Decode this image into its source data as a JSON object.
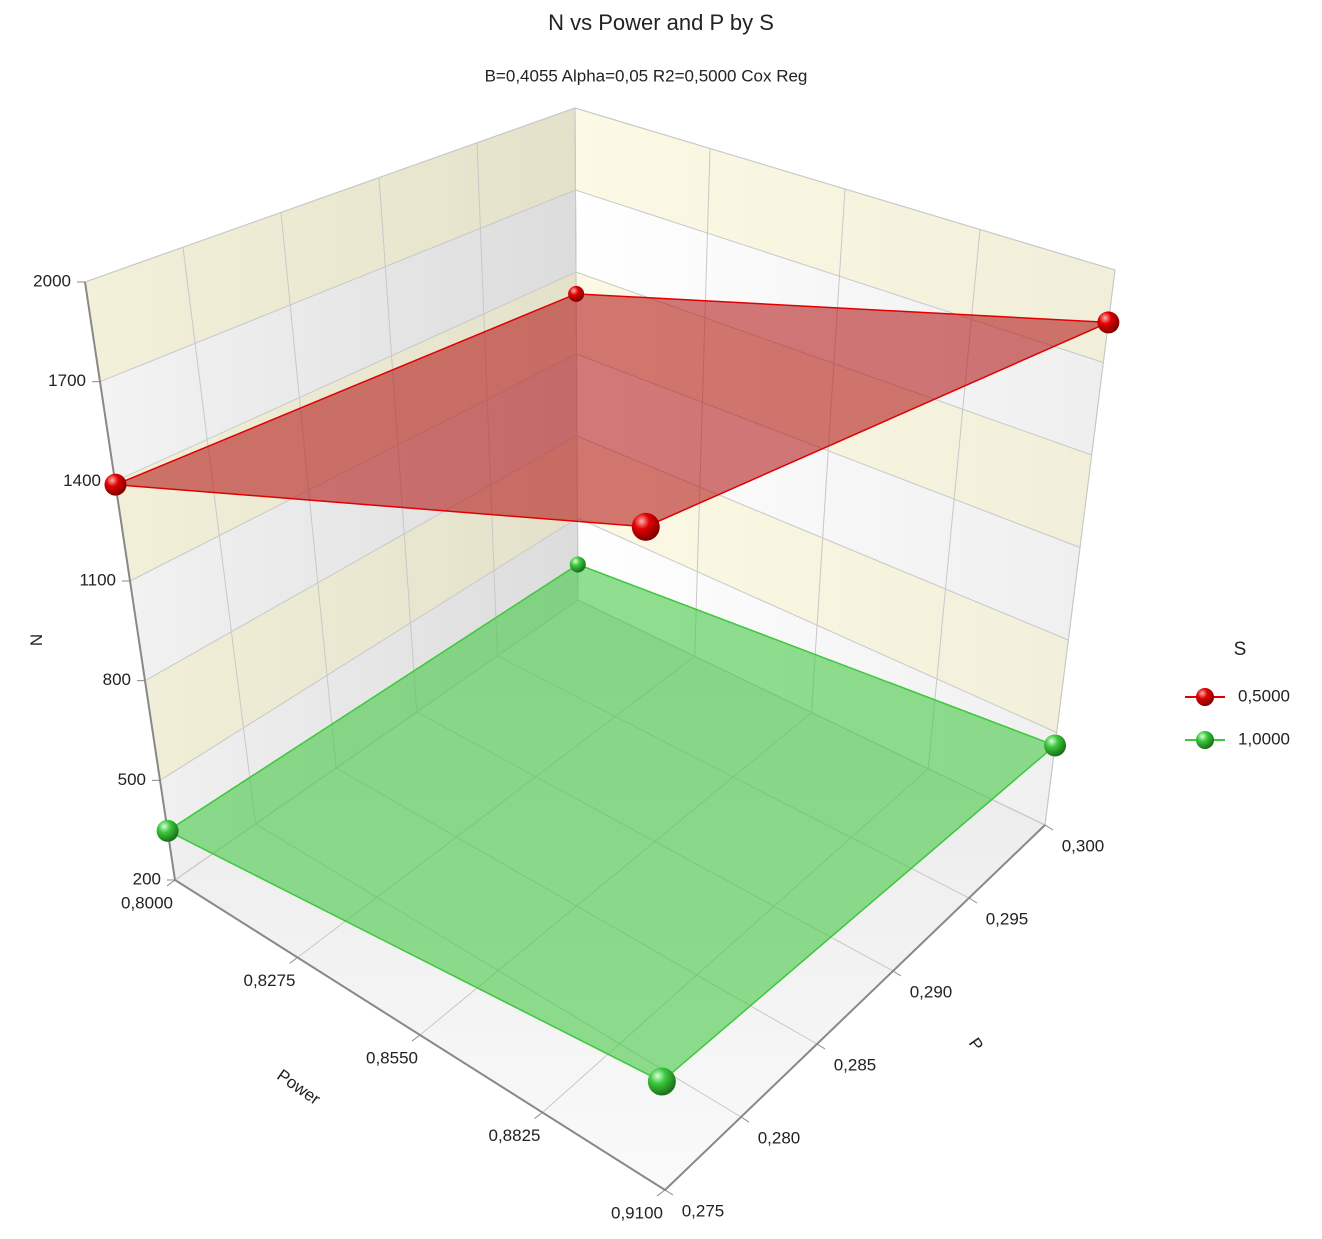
{
  "chart_data": {
    "type": "surface3d",
    "title": "N vs Power and P by S",
    "subtitle": "B=0,4055 Alpha=0,05 R2=0,5000 Cox Reg",
    "x_label": "Power",
    "y_label": "P",
    "z_label": "N",
    "xlim": [
      0.8,
      0.91
    ],
    "xticks": [
      {
        "value": 0.8,
        "label": "0,8000"
      },
      {
        "value": 0.8275,
        "label": "0,8275"
      },
      {
        "value": 0.855,
        "label": "0,8550"
      },
      {
        "value": 0.8825,
        "label": "0,8825"
      },
      {
        "value": 0.91,
        "label": "0,9100"
      }
    ],
    "ylim": [
      0.275,
      0.3
    ],
    "yticks": [
      {
        "value": 0.275,
        "label": "0,275"
      },
      {
        "value": 0.28,
        "label": "0,280"
      },
      {
        "value": 0.285,
        "label": "0,285"
      },
      {
        "value": 0.29,
        "label": "0,290"
      },
      {
        "value": 0.295,
        "label": "0,295"
      },
      {
        "value": 0.3,
        "label": "0,300"
      }
    ],
    "zlim": [
      200,
      2000
    ],
    "zticks": [
      200,
      500,
      800,
      1100,
      1400,
      1700,
      2000
    ],
    "x": [
      0.8,
      0.8,
      0.91,
      0.91
    ],
    "y": [
      0.275,
      0.3,
      0.3,
      0.275
    ],
    "legend_title": "S",
    "series": [
      {
        "name": "0,5000",
        "color": "#e00000",
        "values": [
          1390,
          1320,
          1830,
          1930
        ]
      },
      {
        "name": "1,0000",
        "color": "#3cc83c",
        "values": [
          348,
          330,
          458,
          483
        ]
      }
    ]
  }
}
